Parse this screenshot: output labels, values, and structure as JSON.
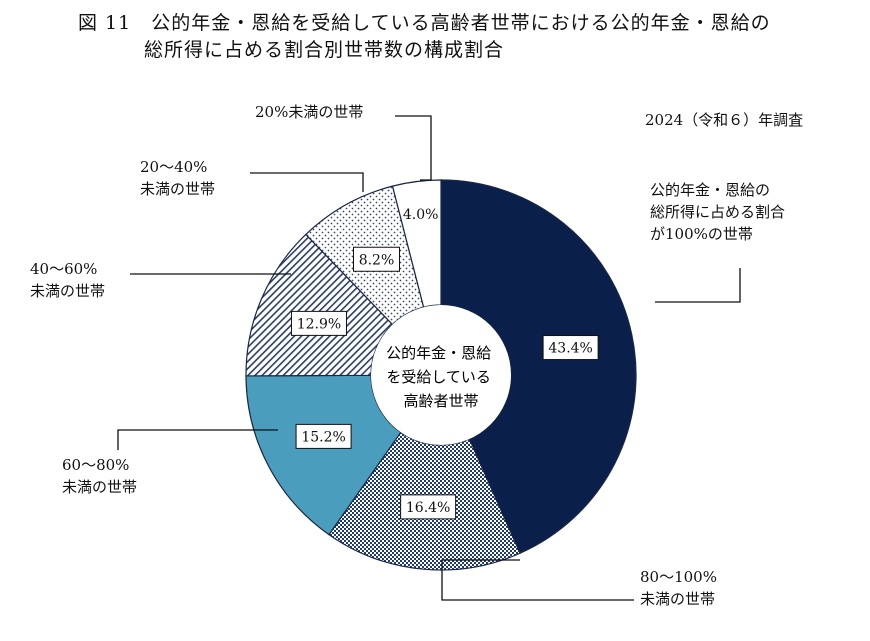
{
  "title": {
    "line1": "図 11　公的年金・恩給を受給している高齢者世帯における公的年金・恩給の",
    "line2": "総所得に占める割合別世帯数の構成割合"
  },
  "survey_note": "2024（令和６）年調査",
  "center_label": [
    "公的年金・恩給",
    "を受給している",
    "高齢者世帯"
  ],
  "chart_data": {
    "type": "pie",
    "donut": true,
    "title": "",
    "slices": [
      {
        "label_lines": [
          "公的年金・恩給の",
          "総所得に占める割合",
          "が100%の世帯"
        ],
        "value": 43.4,
        "display": "43.4%",
        "color": "#0b1f4b",
        "pattern": "solid"
      },
      {
        "label_lines": [
          "80～100%",
          "未満の世帯"
        ],
        "value": 16.4,
        "display": "16.4%",
        "color": "#1f3a6e",
        "pattern": "check"
      },
      {
        "label_lines": [
          "60～80%",
          "未満の世帯"
        ],
        "value": 15.2,
        "display": "15.2%",
        "color": "#4a9dbd",
        "pattern": "solid"
      },
      {
        "label_lines": [
          "40～60%",
          "未満の世帯"
        ],
        "value": 12.9,
        "display": "12.9%",
        "color": "#2c3e66",
        "pattern": "hatch"
      },
      {
        "label_lines": [
          "20～40%",
          "未満の世帯"
        ],
        "value": 8.2,
        "display": "8.2%",
        "color": "#3a4a6b",
        "pattern": "dots"
      },
      {
        "label_lines": [
          "20%未満の世帯"
        ],
        "value": 4.0,
        "display": "4.0%",
        "color": "#ffffff",
        "pattern": "none"
      }
    ]
  }
}
